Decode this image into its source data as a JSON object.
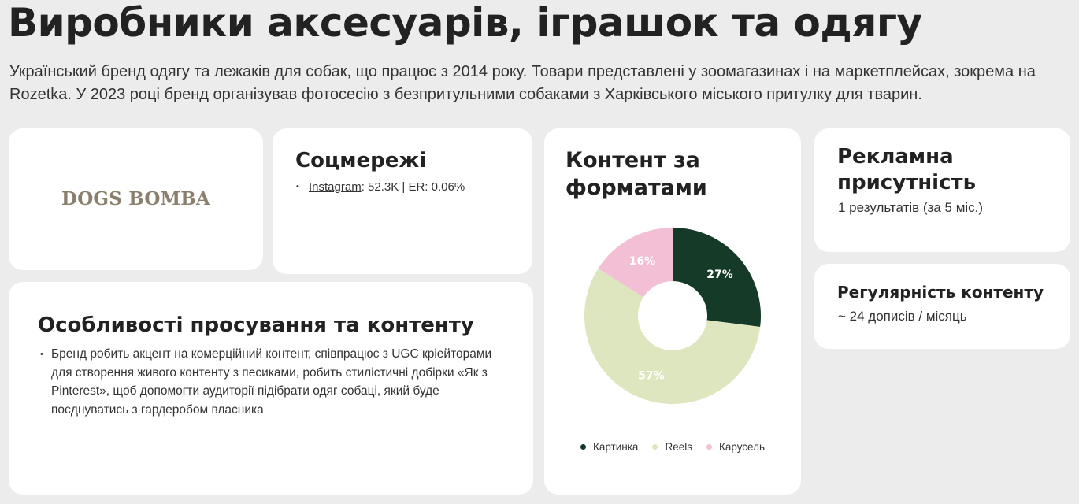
{
  "header": {
    "title": "Виробники аксесуарів, іграшок та одягу",
    "description": "Український бренд одягу та лежаків для собак, що працює з 2014 року. Товари представлені у зоомагазинах і на маркетплейсах, зокрема на Rozetka. У 2023 році бренд організував фотосесію з безпритульними собаками з Харківського міського притулку для тварин."
  },
  "logo": {
    "text": "DOGS BOMBA"
  },
  "social": {
    "heading": "Соцмережі",
    "bullet": "•",
    "network": "Instagram",
    "stats": ": 52.3K | ER: 0.06%"
  },
  "promo": {
    "heading": "Особливості просування та контенту",
    "bullet": "•",
    "text": "Бренд робить акцент на комерційний контент, співпрацює з UGC кріейторами для створення живого контенту з песиками, робить стилістичні добірки «Як з Pinterest», щоб допомогти аудиторії підібрати одяг собаці, який буде поєднуватись з гардеробом власника"
  },
  "ads": {
    "heading": "Рекламна присутність",
    "text": "1 результатів (за 5 міс.)"
  },
  "regularity": {
    "heading": "Регулярність контенту",
    "text": "~ 24 дописів / місяць"
  },
  "chart_data": {
    "type": "pie",
    "title": "Контент за форматами",
    "donut": true,
    "legend_position": "bottom",
    "slices": [
      {
        "label": "Картинка",
        "value": 27,
        "display": "27%",
        "color": "#153a28",
        "text_color": "#ffffff"
      },
      {
        "label": "Reels",
        "value": 57,
        "display": "57%",
        "color": "#dde6be",
        "text_color": "#ffffff"
      },
      {
        "label": "Карусель",
        "value": 16,
        "display": "16%",
        "color": "#f2bfd4",
        "text_color": "#ffffff"
      }
    ]
  }
}
